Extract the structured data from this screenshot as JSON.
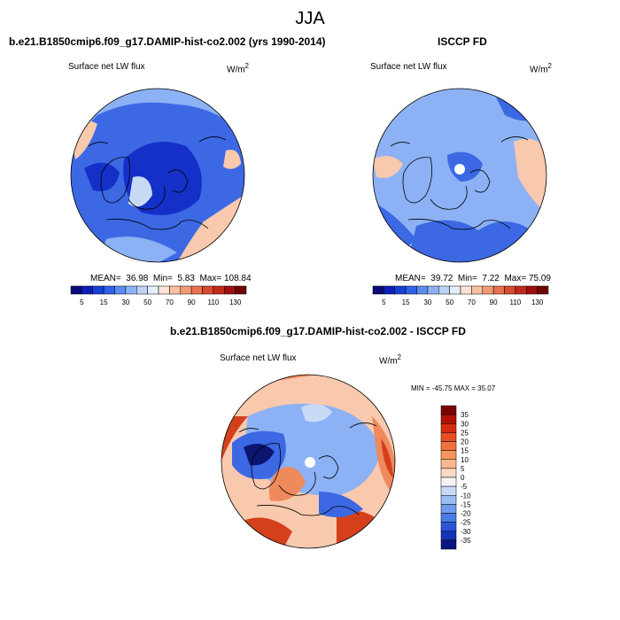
{
  "figure": {
    "title": "JJA",
    "panels": [
      {
        "header": "b.e21.B1850cmip6.f09_g17.DAMIP-hist-co2.002 (yrs 1990-2014)",
        "variable_label": "Surface net LW flux",
        "units_base": "W/m",
        "units_sup": "2",
        "stats": {
          "mean_label": "MEAN=",
          "mean": "36.98",
          "min_label": "Min=",
          "min": "5.83",
          "max_label": "Max=",
          "max": "108.84"
        }
      },
      {
        "header": "ISCCP FD",
        "variable_label": "Surface net LW flux",
        "units_base": "W/m",
        "units_sup": "2",
        "stats": {
          "mean_label": "MEAN=",
          "mean": "39.72",
          "min_label": "Min=",
          "min": "7.22",
          "max_label": "Max=",
          "max": "75.09"
        }
      },
      {
        "header": "b.e21.B1850cmip6.f09_g17.DAMIP-hist-co2.002 - ISCCP FD",
        "variable_label": "Surface net LW flux",
        "units_base": "W/m",
        "units_sup": "2",
        "stats_text": "MIN = -45.75  MAX =  35.07"
      }
    ],
    "colorbar_abs": {
      "labels": [
        "5",
        "15",
        "30",
        "50",
        "70",
        "90",
        "110",
        "130"
      ],
      "colors": [
        "#0a0a7a",
        "#0b1fb8",
        "#1540d8",
        "#2e63e8",
        "#5a8cf0",
        "#8cb2f5",
        "#bcd3f7",
        "#e6eefb",
        "#fde4d6",
        "#f9c0a2",
        "#f39a74",
        "#e9714e",
        "#d84a30",
        "#c12a1c",
        "#9c1010",
        "#6e0606"
      ]
    },
    "colorbar_diff": {
      "labels": [
        "35",
        "30",
        "25",
        "20",
        "15",
        "10",
        "5",
        "0",
        "-5",
        "-10",
        "-15",
        "-20",
        "-25",
        "-30",
        "-35"
      ],
      "colors": [
        "#7a0404",
        "#b01208",
        "#d42c10",
        "#e84d24",
        "#f2713e",
        "#f6955e",
        "#f9b88e",
        "#fbd9c2",
        "#f4f4f4",
        "#c8dbf6",
        "#9cbdf2",
        "#6f9bec",
        "#4a7ae4",
        "#2a55d8",
        "#1632b8",
        "#0a1480"
      ]
    },
    "map_colors": {
      "deep_blue": "#1530c8",
      "mid_blue": "#3c68e4",
      "light_blue": "#8cb2f5",
      "pale_blue": "#c8dbf6",
      "pale_red": "#f9c9ae",
      "orange": "#ee8a5c",
      "red": "#d4401c",
      "dark_red": "#a01008",
      "navy": "#0c1670"
    }
  }
}
